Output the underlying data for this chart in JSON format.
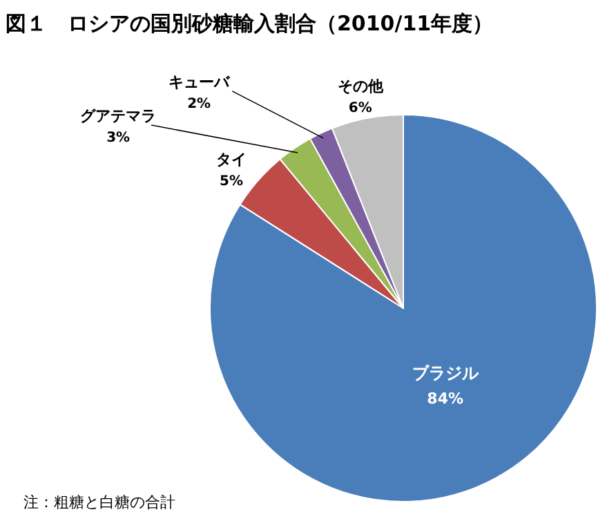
{
  "chart_data": {
    "type": "pie",
    "title": "図１　ロシアの国別砂糖輸入割合（2010/11年度）",
    "categories": [
      "ブラジル",
      "タイ",
      "グアテマラ",
      "キューバ",
      "その他"
    ],
    "values": [
      84,
      5,
      3,
      2,
      6
    ],
    "colors": [
      "#4a7ebb",
      "#be4b48",
      "#98b954",
      "#7d60a0",
      "#c0c0c0"
    ],
    "value_labels": [
      "84%",
      "5%",
      "3%",
      "2%",
      "6%"
    ],
    "annotations": [
      "　注：粗糖と白糖の合計"
    ]
  }
}
